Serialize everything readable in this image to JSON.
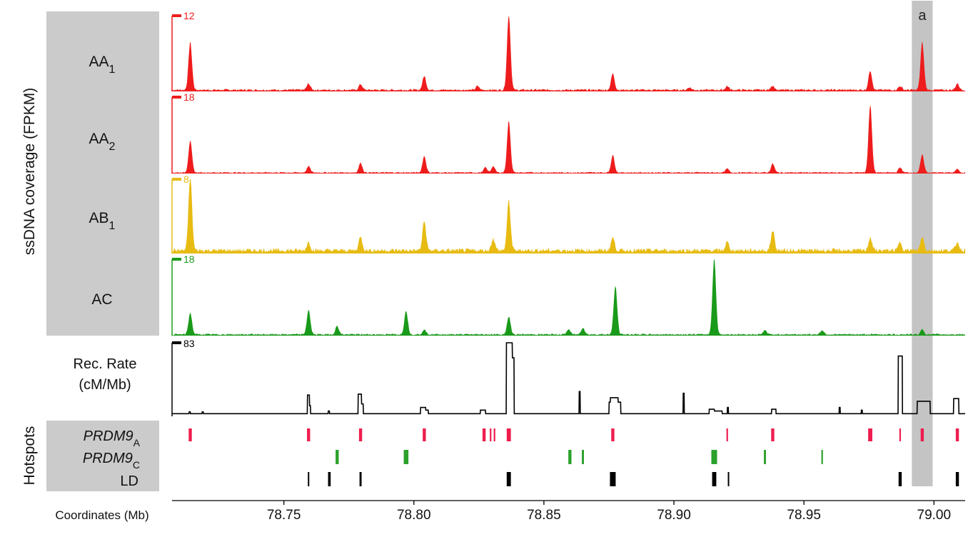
{
  "colors": {
    "aa": "#ee1c1c",
    "ab": "#e7bb12",
    "ac": "#1a9a1a",
    "rec": "#000000",
    "prdm9a": "#ee1d4e",
    "prdm9c": "#2ba12b",
    "ld": "#000000",
    "panel_bg": "#cbcbcb",
    "highlight": "#c4c4c4"
  },
  "axis_title": "ssDNA  coverage (FPKM)",
  "hotspots_title": "Hotspots",
  "chart_data": {
    "type": "area",
    "x_label": "Coordinates (Mb)",
    "x_range": [
      78.707,
      79.012
    ],
    "x_ticks": [
      "78.75",
      "78.80",
      "78.85",
      "78.90",
      "78.95",
      "79.00"
    ],
    "x_tick_values": [
      78.75,
      78.8,
      78.85,
      78.9,
      78.95,
      79.0
    ],
    "highlight": {
      "label": "a",
      "from": 78.9915,
      "to": 78.9995
    },
    "tracks": [
      {
        "key": "aa1",
        "label_main": "AA",
        "label_sub": "1",
        "color_key": "aa",
        "max": 12,
        "baseline": 0.25,
        "peaks": [
          [
            78.714,
            7.6
          ],
          [
            78.7595,
            1.0
          ],
          [
            78.7795,
            0.9
          ],
          [
            78.804,
            2.2
          ],
          [
            78.8245,
            0.6
          ],
          [
            78.8365,
            12.0
          ],
          [
            78.8765,
            2.6
          ],
          [
            78.906,
            0.4
          ],
          [
            78.9205,
            0.6
          ],
          [
            78.938,
            0.7
          ],
          [
            78.9755,
            3.1
          ],
          [
            78.987,
            0.6
          ],
          [
            78.9955,
            7.6
          ],
          [
            79.009,
            1.0
          ]
        ]
      },
      {
        "key": "aa2",
        "label_main": "AA",
        "label_sub": "2",
        "color_key": "aa",
        "max": 18,
        "baseline": 0.25,
        "peaks": [
          [
            78.714,
            7.5
          ],
          [
            78.7595,
            1.5
          ],
          [
            78.7795,
            2.3
          ],
          [
            78.804,
            3.9
          ],
          [
            78.8275,
            1.2
          ],
          [
            78.8305,
            1.5
          ],
          [
            78.8365,
            12.2
          ],
          [
            78.8765,
            4.1
          ],
          [
            78.9205,
            0.9
          ],
          [
            78.938,
            2.1
          ],
          [
            78.9755,
            16.0
          ],
          [
            78.987,
            1.2
          ],
          [
            78.9955,
            4.2
          ],
          [
            79.009,
            0.8
          ]
        ]
      },
      {
        "key": "ab1",
        "label_main": "AB",
        "label_sub": "1",
        "color_key": "ab",
        "max": 8,
        "baseline": 0.35,
        "peaks": [
          [
            78.714,
            8.2
          ],
          [
            78.7595,
            0.9
          ],
          [
            78.7795,
            1.5
          ],
          [
            78.804,
            3.2
          ],
          [
            78.8305,
            1.3
          ],
          [
            78.8365,
            5.4
          ],
          [
            78.8765,
            1.4
          ],
          [
            78.9205,
            0.9
          ],
          [
            78.938,
            2.2
          ],
          [
            78.9755,
            1.4
          ],
          [
            78.987,
            0.9
          ],
          [
            78.9955,
            1.5
          ],
          [
            79.009,
            0.9
          ]
        ]
      },
      {
        "key": "ac",
        "label_main": "AC",
        "label_sub": "",
        "color_key": "ac",
        "max": 18,
        "baseline": 0.3,
        "peaks": [
          [
            78.714,
            5.1
          ],
          [
            78.7595,
            5.8
          ],
          [
            78.7705,
            2.0
          ],
          [
            78.797,
            5.6
          ],
          [
            78.804,
            1.1
          ],
          [
            78.8365,
            4.2
          ],
          [
            78.8595,
            1.2
          ],
          [
            78.865,
            1.6
          ],
          [
            78.8775,
            11.5
          ],
          [
            78.9155,
            18.0
          ],
          [
            78.935,
            1.0
          ],
          [
            78.957,
            1.0
          ],
          [
            78.9955,
            1.2
          ]
        ]
      }
    ],
    "rec_rate": {
      "label_line1": "Rec. Rate",
      "label_line2": "(cM/Mb)",
      "max": 83,
      "x": [
        78.707,
        78.7135,
        78.7136,
        78.714,
        78.7141,
        78.7185,
        78.7186,
        78.719,
        78.7191,
        78.759,
        78.7591,
        78.7598,
        78.7599,
        78.7602,
        78.7603,
        78.767,
        78.7671,
        78.7675,
        78.7676,
        78.7785,
        78.7786,
        78.7798,
        78.7799,
        78.7805,
        78.7806,
        78.8025,
        78.8026,
        78.8045,
        78.8046,
        78.8055,
        78.8056,
        78.8255,
        78.8256,
        78.8275,
        78.8276,
        78.8355,
        78.8356,
        78.8378,
        78.8379,
        78.8385,
        78.8386,
        78.8635,
        78.8636,
        78.8639,
        78.864,
        78.875,
        78.8751,
        78.8755,
        78.8756,
        78.8785,
        78.8786,
        78.8795,
        78.8796,
        78.9035,
        78.9036,
        78.9039,
        78.904,
        78.9135,
        78.9136,
        78.9155,
        78.9156,
        78.9185,
        78.9186,
        78.9205,
        78.9206,
        78.9209,
        78.921,
        78.9375,
        78.9376,
        78.9392,
        78.9393,
        78.9635,
        78.9636,
        78.9639,
        78.964,
        78.972,
        78.9721,
        78.9724,
        78.9725,
        78.9862,
        78.9863,
        78.9878,
        78.9879,
        78.9935,
        78.9936,
        78.9985,
        78.9986,
        79.0075,
        79.0076,
        79.0095,
        79.0096,
        79.012
      ],
      "y": [
        3,
        3,
        5,
        5,
        3,
        3,
        5,
        5,
        3,
        3,
        24,
        24,
        12,
        12,
        3,
        3,
        6,
        6,
        3,
        3,
        25,
        25,
        14,
        14,
        3,
        3,
        10,
        10,
        7,
        7,
        3,
        3,
        7,
        7,
        3,
        3,
        83,
        83,
        66,
        66,
        3,
        3,
        28,
        28,
        3,
        3,
        16,
        16,
        21,
        21,
        16,
        16,
        3,
        3,
        26,
        26,
        3,
        3,
        8,
        8,
        6,
        6,
        3,
        3,
        10,
        10,
        3,
        3,
        8,
        8,
        3,
        3,
        10,
        10,
        3,
        3,
        7,
        7,
        3,
        3,
        68,
        68,
        3,
        3,
        17,
        17,
        3,
        3,
        20,
        20,
        3,
        3
      ]
    },
    "hotspots": [
      {
        "key": "prdm9a",
        "label_main": "PRDM9",
        "label_sub": "A",
        "color_key": "prdm9a",
        "marks": [
          [
            78.714,
            0.0012
          ],
          [
            78.7595,
            0.0012
          ],
          [
            78.7795,
            0.0012
          ],
          [
            78.804,
            0.0012
          ],
          [
            78.827,
            0.0012
          ],
          [
            78.8295,
            0.0006
          ],
          [
            78.831,
            0.0006
          ],
          [
            78.8365,
            0.0016
          ],
          [
            78.8765,
            0.0012
          ],
          [
            78.9205,
            0.0006
          ],
          [
            78.938,
            0.0012
          ],
          [
            78.9755,
            0.0016
          ],
          [
            78.987,
            0.0006
          ],
          [
            78.9955,
            0.0012
          ],
          [
            79.009,
            0.0012
          ]
        ]
      },
      {
        "key": "prdm9c",
        "label_main": "PRDM9",
        "label_sub": "C",
        "color_key": "prdm9c",
        "marks": [
          [
            78.7705,
            0.0012
          ],
          [
            78.797,
            0.0018
          ],
          [
            78.86,
            0.0012
          ],
          [
            78.865,
            0.0008
          ],
          [
            78.9155,
            0.0022
          ],
          [
            78.935,
            0.0008
          ],
          [
            78.957,
            0.0006
          ]
        ]
      },
      {
        "key": "ld",
        "label_main": "LD",
        "label_sub": "",
        "color_key": "ld",
        "marks": [
          [
            78.7595,
            0.0004
          ],
          [
            78.7675,
            0.001
          ],
          [
            78.7795,
            0.0008
          ],
          [
            78.8365,
            0.0016
          ],
          [
            78.8765,
            0.0022
          ],
          [
            78.9155,
            0.0016
          ],
          [
            78.921,
            0.0004
          ],
          [
            78.987,
            0.0012
          ],
          [
            79.009,
            0.0012
          ]
        ]
      }
    ]
  }
}
